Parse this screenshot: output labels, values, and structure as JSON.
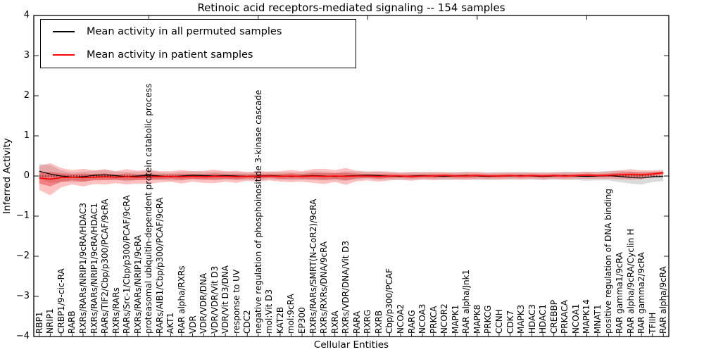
{
  "chart_data": {
    "type": "line",
    "title": "Retinoic acid receptors-mediated signaling -- 154 samples",
    "xlabel": "Cellular Entities",
    "ylabel": "Inferred Activity",
    "ylim": [
      -4,
      4
    ],
    "yticks": [
      4,
      3,
      2,
      1,
      0,
      -1,
      -2,
      -3,
      -4
    ],
    "grid": false,
    "legend_position": "upper left",
    "zero_line_style": "dotted",
    "top_tick_indices": [
      10,
      20,
      30,
      40,
      50
    ],
    "categories": [
      "RBP1",
      "NRIP1",
      "CRBP1/9-cic-RA",
      "RARB",
      "RXRs/RARs/NRIP1/9cRA/HDAC3",
      "RXRs/RARs/NRIP1/9cRA/HDAC1",
      "RARs/TIF2/Cbp/p300/PCAF/9cRA",
      "RXRs/RARs",
      "RARs/Src-1/Cbp/p300/PCAF/9cRA",
      "RXRs/RARs/NRIP1/9cRA",
      "proteasomal ubiquitin-dependent protein catabolic process",
      "RARs/AIB1/Cbp/p300/PCAF/9cRA",
      "AKT1",
      "RAR alpha/RXRs",
      "VDR",
      "VDR/VDR/DNA",
      "VDR/VDR/Vit D3",
      "VDR/Vit D3/DNA",
      "response to UV",
      "CDC2",
      "negative regulation of phosphoinositide 3-kinase cascade",
      "mol:Vit D3",
      "KAT2B",
      "mol:9cRA",
      "EP300",
      "RXRs/RARs/SMRT(N-CoR2)/9cRA",
      "RXRs/RXRs/DNA/9cRA",
      "RXRA",
      "RXRs/VDR/DNA/Vit D3",
      "RARA",
      "RXRG",
      "RXRB",
      "Cbp/p300/PCAF",
      "NCOA2",
      "RARG",
      "NCOA3",
      "PRKCA",
      "NCOR2",
      "MAPK1",
      "RAR alpha/Jnk1",
      "MAPK8",
      "PRKCG",
      "CCNH",
      "CDK7",
      "MAPK3",
      "HDAC3",
      "HDAC1",
      "CREBBP",
      "PRKACA",
      "NCOA1",
      "MAPK14",
      "MNAT1",
      "positive regulation of DNA binding",
      "RAR gamma1/9cRA",
      "RAR alpha/9cRA/Cyclin H",
      "RAR gamma2/9cRA",
      "TFIIH",
      "RAR alpha/9cRA"
    ],
    "series": [
      {
        "name": "Mean activity in all permuted samples",
        "line_color": "#000000",
        "line_width": 1.2,
        "band_color": "#888888",
        "band_opacity": 0.3,
        "values": [
          0.12,
          0.05,
          0.0,
          -0.03,
          -0.02,
          0.02,
          0.03,
          0.01,
          -0.02,
          0.0,
          0.02,
          0.0,
          -0.02,
          0.0,
          0.02,
          0.01,
          0.0,
          0.01,
          0.0,
          -0.01,
          0.0,
          0.01,
          0.0,
          -0.01,
          0.0,
          0.01,
          0.0,
          -0.01,
          0.0,
          0.01,
          0.02,
          0.01,
          0.0,
          -0.01,
          0.0,
          0.01,
          0.0,
          -0.01,
          0.0,
          0.01,
          0.0,
          -0.01,
          0.0,
          0.0,
          0.01,
          0.0,
          -0.01,
          0.0,
          0.01,
          0.0,
          -0.01,
          0.0,
          0.01,
          -0.01,
          -0.04,
          -0.05,
          -0.02,
          -0.01
        ],
        "band": [
          0.18,
          0.22,
          0.14,
          0.12,
          0.13,
          0.11,
          0.12,
          0.1,
          0.12,
          0.1,
          0.11,
          0.1,
          0.1,
          0.11,
          0.1,
          0.1,
          0.11,
          0.1,
          0.1,
          0.09,
          0.1,
          0.09,
          0.1,
          0.1,
          0.1,
          0.11,
          0.11,
          0.1,
          0.12,
          0.1,
          0.09,
          0.1,
          0.09,
          0.09,
          0.09,
          0.09,
          0.09,
          0.09,
          0.09,
          0.09,
          0.09,
          0.09,
          0.09,
          0.09,
          0.09,
          0.09,
          0.09,
          0.09,
          0.1,
          0.1,
          0.11,
          0.11,
          0.12,
          0.14,
          0.15,
          0.16,
          0.13,
          0.12
        ]
      },
      {
        "name": "Mean activity in patient samples",
        "line_color": "#ff0000",
        "line_width": 1.6,
        "band_color": "#ff3333",
        "band_opacity": 0.3,
        "inner_band_factor": 0.45,
        "inner_band_color": "#e02020",
        "inner_band_opacity": 0.4,
        "values": [
          -0.05,
          -0.08,
          -0.04,
          -0.03,
          -0.04,
          -0.03,
          -0.02,
          -0.03,
          -0.02,
          -0.03,
          -0.02,
          -0.02,
          -0.01,
          -0.02,
          -0.01,
          -0.02,
          -0.01,
          -0.01,
          -0.02,
          -0.01,
          -0.01,
          0.0,
          -0.01,
          0.0,
          -0.01,
          0.0,
          -0.01,
          0.0,
          -0.01,
          0.0,
          0.0,
          -0.01,
          0.0,
          0.0,
          -0.01,
          0.0,
          0.0,
          0.01,
          0.0,
          0.0,
          0.01,
          0.0,
          0.0,
          0.01,
          0.0,
          0.01,
          0.0,
          0.01,
          0.0,
          0.01,
          0.02,
          0.01,
          0.02,
          0.03,
          0.04,
          0.03,
          0.05,
          0.08
        ],
        "band": [
          0.3,
          0.4,
          0.24,
          0.18,
          0.22,
          0.17,
          0.19,
          0.15,
          0.19,
          0.16,
          0.18,
          0.14,
          0.13,
          0.17,
          0.13,
          0.15,
          0.17,
          0.13,
          0.15,
          0.11,
          0.13,
          0.11,
          0.13,
          0.15,
          0.13,
          0.17,
          0.19,
          0.15,
          0.21,
          0.13,
          0.11,
          0.13,
          0.11,
          0.09,
          0.11,
          0.09,
          0.1,
          0.09,
          0.09,
          0.1,
          0.09,
          0.08,
          0.09,
          0.08,
          0.09,
          0.08,
          0.09,
          0.08,
          0.09,
          0.08,
          0.09,
          0.08,
          0.09,
          0.11,
          0.13,
          0.11,
          0.09,
          0.07
        ]
      }
    ]
  }
}
